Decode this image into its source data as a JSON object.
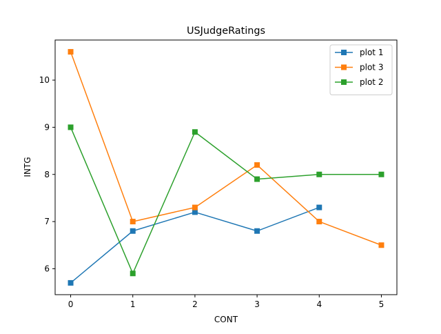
{
  "chart_data": {
    "type": "line",
    "title": "USJudgeRatings",
    "xlabel": "CONT",
    "ylabel": "INTG",
    "xlim": [
      -0.25,
      5.25
    ],
    "ylim": [
      5.45,
      10.85
    ],
    "x_ticks": [
      0,
      1,
      2,
      3,
      4,
      5
    ],
    "y_ticks": [
      6,
      7,
      8,
      9,
      10
    ],
    "grid": false,
    "legend_position": "top-right",
    "marker": "square",
    "series": [
      {
        "name": "plot 1",
        "color": "#1f77b4",
        "x": [
          0,
          1,
          2,
          3,
          4
        ],
        "y": [
          5.7,
          6.8,
          7.2,
          6.8,
          7.3
        ]
      },
      {
        "name": "plot 3",
        "color": "#ff7f0e",
        "x": [
          0,
          1,
          2,
          3,
          4,
          5
        ],
        "y": [
          10.6,
          7.0,
          7.3,
          8.2,
          7.0,
          6.5
        ]
      },
      {
        "name": "plot 2",
        "color": "#2ca02c",
        "x": [
          0,
          1,
          2,
          3,
          4,
          5
        ],
        "y": [
          9.0,
          5.9,
          8.9,
          7.9,
          8.0,
          8.0
        ]
      }
    ]
  }
}
